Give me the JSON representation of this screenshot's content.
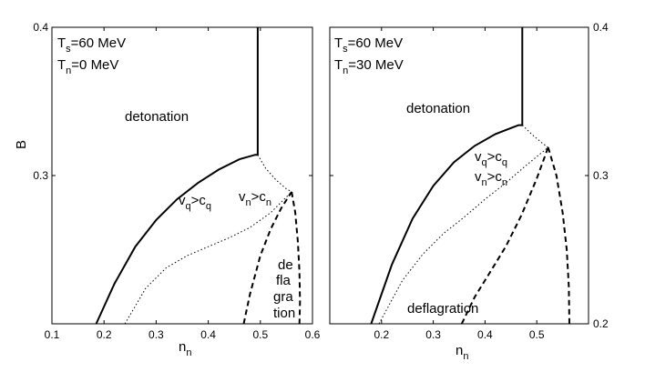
{
  "chart_data": [
    {
      "type": "line",
      "xlabel_main": "n",
      "xlabel_sub": "n",
      "ylabel": "B",
      "xlim": [
        0.1,
        0.6
      ],
      "ylim": [
        0.2,
        0.4
      ],
      "xticks": [
        0.1,
        0.2,
        0.3,
        0.4,
        0.5,
        0.6
      ],
      "xtick_labels": [
        "0.1",
        "0.2",
        "0.3",
        "0.4",
        "0.5",
        "0.6"
      ],
      "yticks": [
        0.3,
        0.4
      ],
      "ytick_labels": [
        "0.3",
        "0.4"
      ],
      "params": [
        {
          "main": "T",
          "sub": "s",
          "rest": "=60 MeV"
        },
        {
          "main": "T",
          "sub": "n",
          "rest": "=0 MeV"
        }
      ],
      "region_labels": {
        "detonation": "detonation",
        "vq_cond": {
          "v": "v",
          "v_sub": "q",
          "op": ">c",
          "c_sub": "q"
        },
        "vn_cond": {
          "v": "v",
          "v_sub": "n",
          "op": ">c",
          "c_sub": "n"
        },
        "deflagration_parts": [
          "de",
          "fla",
          "gra",
          "tion"
        ]
      },
      "series": [
        {
          "name": "detonation boundary",
          "style": "solid",
          "x": [
            0.185,
            0.22,
            0.26,
            0.3,
            0.34,
            0.38,
            0.42,
            0.46,
            0.49,
            0.495,
            0.495,
            0.495
          ],
          "y": [
            0.2,
            0.227,
            0.252,
            0.27,
            0.284,
            0.295,
            0.304,
            0.311,
            0.314,
            0.314,
            0.35,
            0.4
          ]
        },
        {
          "name": "vq=cq",
          "style": "dotted",
          "x": [
            0.495,
            0.51,
            0.53,
            0.55,
            0.56
          ],
          "y": [
            0.314,
            0.305,
            0.297,
            0.291,
            0.289
          ]
        },
        {
          "name": "vn=cn",
          "style": "dotted",
          "x": [
            0.24,
            0.28,
            0.32,
            0.36,
            0.4,
            0.44,
            0.48,
            0.52,
            0.56
          ],
          "y": [
            0.2,
            0.224,
            0.238,
            0.246,
            0.252,
            0.258,
            0.265,
            0.275,
            0.289
          ]
        },
        {
          "name": "deflagration left",
          "style": "dashed",
          "x": [
            0.468,
            0.48,
            0.5,
            0.52,
            0.54,
            0.56
          ],
          "y": [
            0.2,
            0.22,
            0.246,
            0.264,
            0.278,
            0.289
          ]
        },
        {
          "name": "deflagration right",
          "style": "dashed",
          "x": [
            0.56,
            0.567,
            0.572,
            0.575,
            0.576,
            0.575
          ],
          "y": [
            0.289,
            0.275,
            0.255,
            0.235,
            0.215,
            0.2
          ]
        }
      ]
    },
    {
      "type": "line",
      "xlabel_main": "n",
      "xlabel_sub": "n",
      "ylabel": "",
      "xlim": [
        0.1,
        0.6
      ],
      "ylim": [
        0.2,
        0.4
      ],
      "xticks": [
        0.2,
        0.3,
        0.4,
        0.5
      ],
      "xtick_labels": [
        "0.2",
        "0.3",
        "0.4",
        "0.5"
      ],
      "yticks": [
        0.2,
        0.3,
        0.4
      ],
      "ytick_labels": [
        "0.2",
        "0.3",
        "0.4"
      ],
      "params": [
        {
          "main": "T",
          "sub": "s",
          "rest": "=60 MeV"
        },
        {
          "main": "T",
          "sub": "n",
          "rest": "=30 MeV"
        }
      ],
      "region_labels": {
        "detonation": "detonation",
        "vq_cond": {
          "v": "v",
          "v_sub": "q",
          "op": ">c",
          "c_sub": "q"
        },
        "vn_cond": {
          "v": "v",
          "v_sub": "n",
          "op": ">c",
          "c_sub": "n"
        },
        "deflagration": "deflagration"
      },
      "series": [
        {
          "name": "detonation boundary",
          "style": "solid",
          "x": [
            0.18,
            0.22,
            0.26,
            0.3,
            0.34,
            0.38,
            0.42,
            0.45,
            0.465,
            0.472,
            0.472,
            0.472
          ],
          "y": [
            0.2,
            0.24,
            0.271,
            0.293,
            0.309,
            0.32,
            0.328,
            0.332,
            0.334,
            0.334,
            0.37,
            0.4
          ]
        },
        {
          "name": "vq=cq",
          "style": "dotted",
          "x": [
            0.472,
            0.49,
            0.51,
            0.522
          ],
          "y": [
            0.334,
            0.328,
            0.322,
            0.319
          ]
        },
        {
          "name": "vn=cn",
          "style": "dotted",
          "x": [
            0.195,
            0.24,
            0.28,
            0.32,
            0.36,
            0.4,
            0.44,
            0.48,
            0.522
          ],
          "y": [
            0.2,
            0.229,
            0.247,
            0.261,
            0.272,
            0.284,
            0.295,
            0.307,
            0.319
          ]
        },
        {
          "name": "deflagration left",
          "style": "dashed",
          "x": [
            0.355,
            0.38,
            0.41,
            0.44,
            0.47,
            0.5,
            0.522
          ],
          "y": [
            0.2,
            0.218,
            0.235,
            0.252,
            0.273,
            0.298,
            0.319
          ]
        },
        {
          "name": "deflagration right",
          "style": "dashed",
          "x": [
            0.522,
            0.538,
            0.55,
            0.558,
            0.562,
            0.563
          ],
          "y": [
            0.319,
            0.3,
            0.275,
            0.25,
            0.225,
            0.2
          ]
        }
      ]
    }
  ]
}
